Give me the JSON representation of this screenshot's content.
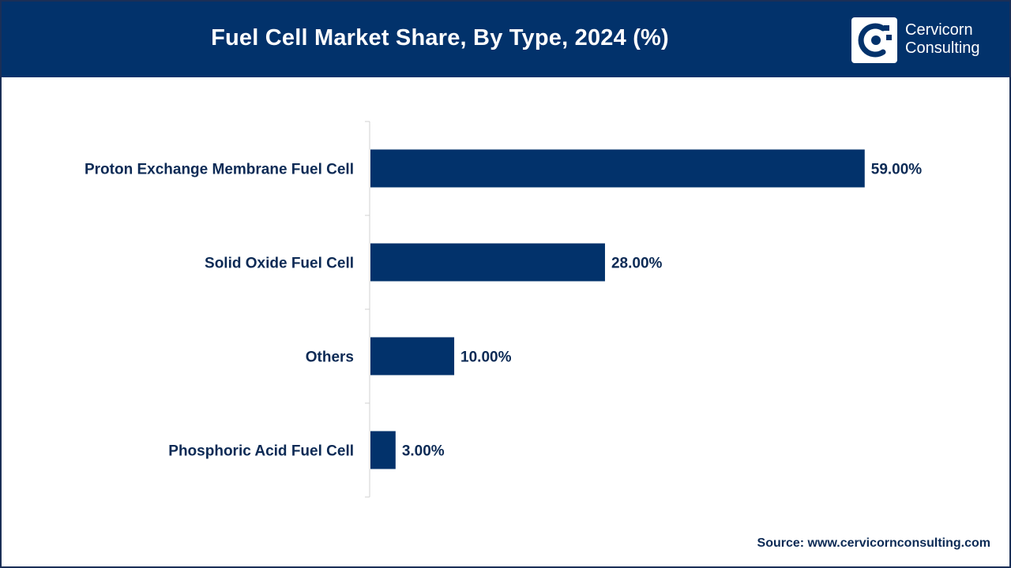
{
  "header": {
    "title": "Fuel Cell Market Share, By Type, 2024 (%)",
    "logo_line1": "Cervicorn",
    "logo_line2": "Consulting"
  },
  "colors": {
    "header_bg": "#02326b",
    "bar": "#02326b",
    "text": "#0c2a55"
  },
  "icons": {
    "logo": "cervicorn-logo-icon"
  },
  "source": "Source: www.cervicornconsulting.com",
  "chart_data": {
    "type": "bar",
    "orientation": "horizontal",
    "categories": [
      "Proton Exchange Membrane Fuel Cell",
      "Solid Oxide Fuel Cell",
      "Others",
      "Phosphoric Acid Fuel Cell"
    ],
    "values": [
      59.0,
      28.0,
      10.0,
      3.0
    ],
    "data_labels": [
      "59.00%",
      "28.00%",
      "10.00%",
      "3.00%"
    ],
    "xlim": [
      0,
      66
    ],
    "grid": false,
    "legend": "none"
  }
}
